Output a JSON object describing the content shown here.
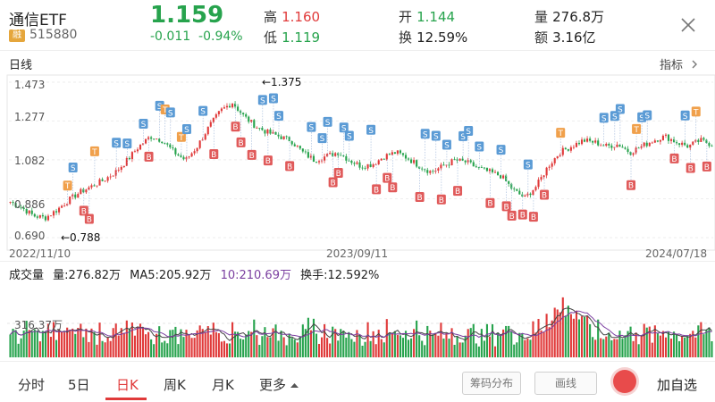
{
  "header": {
    "name": "通信ETF",
    "badge": "融",
    "code": "515880",
    "price": "1.159",
    "change": "-0.011",
    "change_pct": "-0.94%",
    "high_label": "高",
    "high_value": "1.160",
    "low_label": "低",
    "low_value": "1.119",
    "open_label": "开",
    "open_value": "1.144",
    "turnover_label": "换",
    "turnover_value": "12.59%",
    "volume_label": "量",
    "volume_value": "276.8万",
    "amount_label": "额",
    "amount_value": "3.16亿"
  },
  "chart_header": {
    "period_label": "日线",
    "indicator_label": "指标"
  },
  "price_chart": {
    "y_ticks": [
      "1.473",
      "1.277",
      "1.082",
      "0.886",
      "0.690"
    ],
    "x_ticks": [
      "2022/11/10",
      "2023/09/11",
      "2024/07/18"
    ],
    "max_annotation": "←1.375",
    "min_annotation": "←0.788"
  },
  "volume_panel": {
    "title": "成交量",
    "vol": "量:276.82万",
    "ma5": "MA5:205.92万",
    "ma10": "10:210.69万",
    "turnover": "换手:12.592%",
    "y_tick": "316.37万"
  },
  "bottom_tabs": {
    "tabs": [
      "分时",
      "5日",
      "日K",
      "周K",
      "月K",
      "更多"
    ],
    "chip_button": "筹码分布",
    "draw_button": "画线",
    "add_favorite": "加自选"
  },
  "colors": {
    "up": "#e03a3a",
    "down": "#27a34d",
    "buy": "#e05a5a",
    "sell": "#5b9bd5",
    "t": "#f0a04b",
    "ma_purple": "#7b3fa0"
  },
  "chart_data": {
    "type": "candlestick",
    "ylim": [
      0.69,
      1.473
    ],
    "x_ticks": [
      "2022/11/10",
      "2023/09/11",
      "2024/07/18"
    ],
    "max_point": 1.375,
    "min_point": 0.788,
    "close_trend": [
      0.87,
      0.84,
      0.8,
      0.79,
      0.83,
      0.88,
      0.92,
      0.95,
      0.98,
      1.02,
      1.08,
      1.15,
      1.2,
      1.18,
      1.12,
      1.08,
      1.15,
      1.25,
      1.33,
      1.37,
      1.3,
      1.25,
      1.22,
      1.2,
      1.18,
      1.12,
      1.08,
      1.1,
      1.12,
      1.08,
      1.05,
      1.06,
      1.1,
      1.12,
      1.09,
      1.05,
      1.02,
      1.05,
      1.08,
      1.07,
      1.04,
      1.02,
      1.0,
      0.93,
      0.89,
      0.95,
      1.05,
      1.12,
      1.15,
      1.18,
      1.17,
      1.15,
      1.16,
      1.12,
      1.15,
      1.18,
      1.2,
      1.17,
      1.15,
      1.18,
      1.16
    ]
  }
}
